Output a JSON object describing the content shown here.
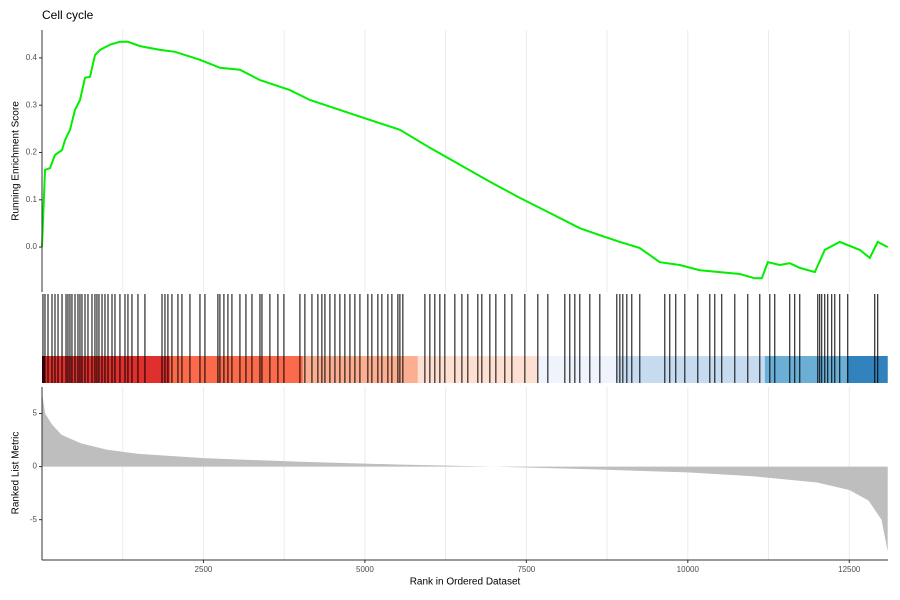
{
  "chart_data": [
    {
      "type": "line",
      "title": "Cell cycle",
      "ylabel": "Running Enrichment Score",
      "color": "#00ee00",
      "grid": true,
      "xlim": [
        0,
        13100
      ],
      "ylim": [
        -0.095,
        0.459
      ],
      "yticks": [
        {
          "value": 0,
          "label": "0.0"
        },
        0.1,
        0.2,
        0.3,
        0.4
      ],
      "x_grid": [
        1250,
        2500,
        3750,
        5000,
        6250,
        7500,
        8750,
        10000,
        11250,
        12500
      ],
      "x": [
        0,
        46,
        124,
        201,
        310,
        356,
        433,
        511,
        588,
        666,
        743,
        820,
        898,
        1053,
        1207,
        1331,
        1517,
        1827,
        2059,
        2446,
        2756,
        3065,
        3375,
        3839,
        4149,
        4613,
        5077,
        5542,
        6006,
        6471,
        6935,
        7400,
        7864,
        8328,
        8638,
        8948,
        9257,
        9567,
        9876,
        10186,
        10495,
        10805,
        11037,
        11146,
        11239,
        11424,
        11579,
        11734,
        11966,
        12121,
        12353,
        12663,
        12818,
        12941,
        13096
      ],
      "values": [
        0,
        0.163,
        0.167,
        0.195,
        0.205,
        0.226,
        0.248,
        0.29,
        0.311,
        0.358,
        0.36,
        0.406,
        0.417,
        0.428,
        0.434,
        0.434,
        0.425,
        0.417,
        0.413,
        0.396,
        0.379,
        0.375,
        0.353,
        0.332,
        0.311,
        0.29,
        0.269,
        0.248,
        0.21,
        0.174,
        0.138,
        0.104,
        0.072,
        0.04,
        0.025,
        0.011,
        -0.002,
        -0.032,
        -0.038,
        -0.049,
        -0.053,
        -0.057,
        -0.066,
        -0.066,
        -0.032,
        -0.038,
        -0.034,
        -0.044,
        -0.053,
        -0.006,
        0.011,
        -0.006,
        -0.023,
        0.011,
        0
      ]
    },
    {
      "type": "rug",
      "color": "#000000",
      "xlim": [
        0,
        13100
      ],
      "x": [
        15,
        46,
        93,
        155,
        201,
        248,
        310,
        372,
        402,
        433,
        464,
        511,
        557,
        588,
        619,
        666,
        712,
        774,
        820,
        851,
        882,
        929,
        975,
        1022,
        1084,
        1130,
        1207,
        1285,
        1331,
        1393,
        1486,
        1594,
        1858,
        1904,
        1950,
        2012,
        2105,
        2167,
        2291,
        2446,
        2523,
        2724,
        2755,
        2817,
        2879,
        2941,
        3065,
        3158,
        3251,
        3375,
        3406,
        3529,
        3653,
        3746,
        3994,
        4071,
        4180,
        4272,
        4334,
        4381,
        4458,
        4536,
        4613,
        4690,
        4768,
        4845,
        4923,
        5046,
        5108,
        5201,
        5263,
        5356,
        5418,
        5511,
        5542,
        5588,
        5929,
        6006,
        6083,
        6161,
        6238,
        6393,
        6502,
        6594,
        6749,
        6811,
        6935,
        7028,
        7167,
        7276,
        7477,
        7678,
        7833,
        8096,
        8173,
        8251,
        8328,
        8483,
        8638,
        8901,
        8948,
        8994,
        9056,
        9133,
        9257,
        9644,
        9721,
        9814,
        9954,
        10155,
        10341,
        10418,
        10526,
        10728,
        10929,
        11115,
        11270,
        11347,
        11579,
        11656,
        11734,
        12013,
        12043,
        12074,
        12121,
        12167,
        12229,
        12276,
        12353,
        12477,
        12895,
        12941
      ],
      "bands": [
        {
          "start": 0,
          "end": 46,
          "color": "#67000d"
        },
        {
          "start": 46,
          "end": 1981,
          "color": "#e0302e"
        },
        {
          "start": 1981,
          "end": 4040,
          "color": "#fb6a4a"
        },
        {
          "start": 4040,
          "end": 5820,
          "color": "#fcae91"
        },
        {
          "start": 5820,
          "end": 7678,
          "color": "#fee0d2"
        },
        {
          "start": 7678,
          "end": 8901,
          "color": "#eef3fc"
        },
        {
          "start": 8901,
          "end": 11192,
          "color": "#c6dbef"
        },
        {
          "start": 11192,
          "end": 12461,
          "color": "#6baed6"
        },
        {
          "start": 12461,
          "end": 13096,
          "color": "#3182bd"
        }
      ]
    },
    {
      "type": "area",
      "ylabel": "Ranked List Metric",
      "xlabel": "Rank in Ordered Dataset",
      "color": "#bebebe",
      "grid": true,
      "xlim": [
        0,
        13100
      ],
      "ylim": [
        -8.8,
        7.5
      ],
      "yticks": [
        -5,
        0,
        5
      ],
      "xticks": [
        2500,
        5000,
        7500,
        10000,
        12500
      ],
      "x_grid": [
        1250,
        2500,
        3750,
        5000,
        6250,
        7500,
        8750,
        10000,
        11250,
        12500
      ],
      "x": [
        0,
        50,
        150,
        300,
        600,
        1000,
        1500,
        2500,
        4000,
        5500,
        7000,
        8500,
        10000,
        11000,
        12000,
        12500,
        12800,
        13000,
        13096
      ],
      "values": [
        7,
        5,
        4,
        3,
        2.2,
        1.6,
        1.2,
        0.8,
        0.45,
        0.2,
        0,
        -0.25,
        -0.55,
        -0.9,
        -1.5,
        -2.2,
        -3.2,
        -5,
        -8
      ]
    }
  ]
}
